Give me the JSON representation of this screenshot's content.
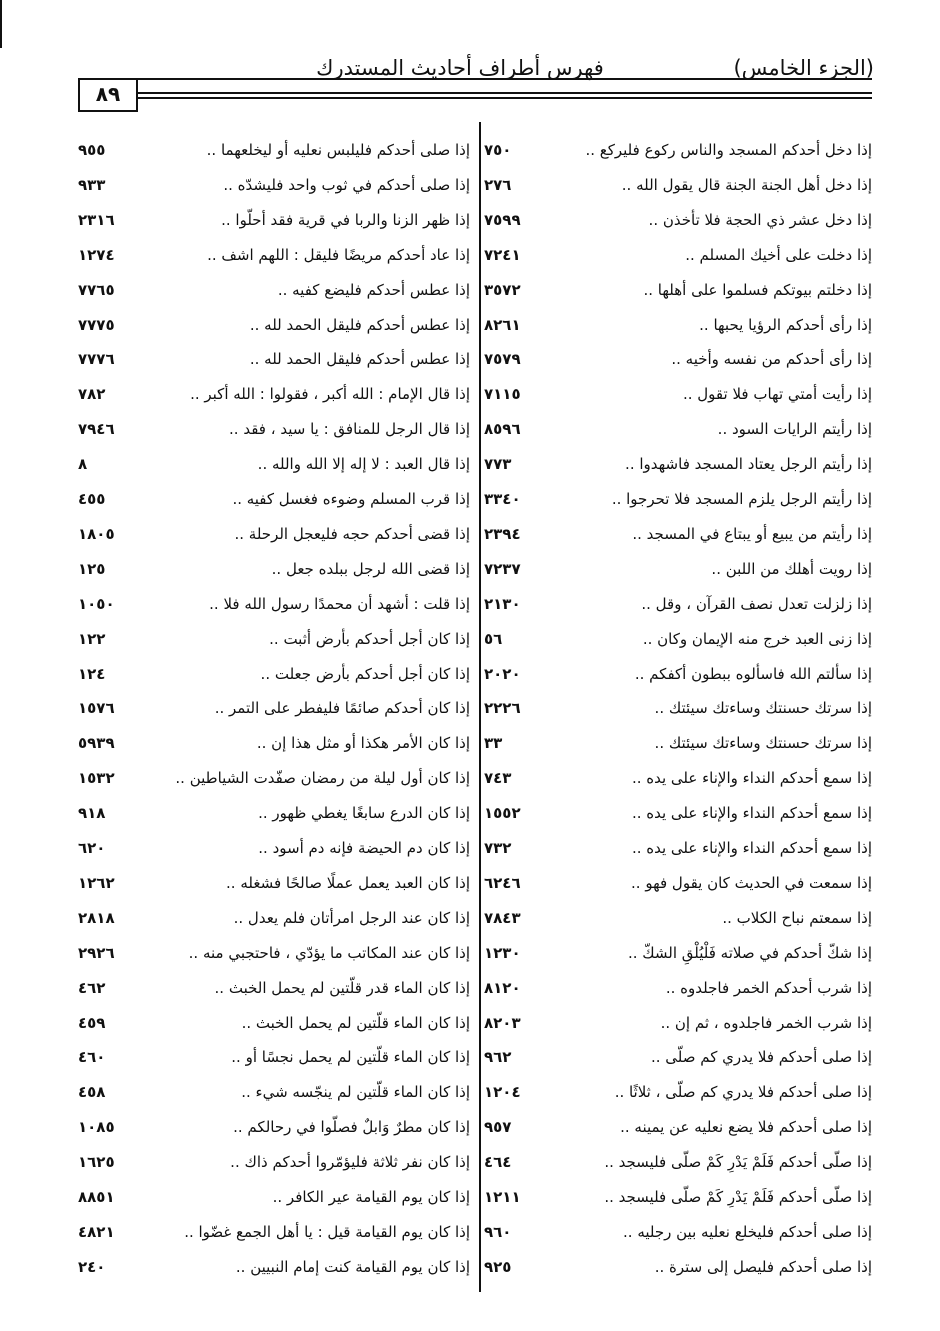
{
  "header": {
    "volume": "(الجزء الخامس)",
    "title": "فهرس أطراف أحاديث المستدرك",
    "page": "٨٩"
  },
  "columns": [
    {
      "rows": [
        {
          "text": "إذا دخل أحدكم المسجد والناس ركوع فليركع ..",
          "ref": "٧٥٠"
        },
        {
          "text": "إذا دخل أهل الجنة الجنة قال يقول الله ..",
          "ref": "٢٧٦"
        },
        {
          "text": "إذا دخل عشر ذي الحجة فلا تأخذن ..",
          "ref": "٧٥٩٩"
        },
        {
          "text": "إذا دخلت على أخيك المسلم ..",
          "ref": "٧٢٤١"
        },
        {
          "text": "إذا دخلتم بيوتكم فسلموا على أهلها ..",
          "ref": "٣٥٧٢"
        },
        {
          "text": "إذا رأى أحدكم الرؤيا يحبها ..",
          "ref": "٨٢٦١"
        },
        {
          "text": "إذا رأى أحدكم من نفسه وأخيه ..",
          "ref": "٧٥٧٩"
        },
        {
          "text": "إذا رأيت أمتي تهاب فلا تقول ..",
          "ref": "٧١١٥"
        },
        {
          "text": "إذا رأيتم الرايات السود ..",
          "ref": "٨٥٩٦"
        },
        {
          "text": "إذا رأيتم الرجل يعتاد المسجد فاشهدوا ..",
          "ref": "٧٧٣"
        },
        {
          "text": "إذا رأيتم الرجل يلزم المسجد فلا تحرجوا ..",
          "ref": "٣٣٤٠"
        },
        {
          "text": "إذا رأيتم من يبيع أو يبتاع في المسجد ..",
          "ref": "٢٣٩٤"
        },
        {
          "text": "إذا رويت أهلك من اللبن ..",
          "ref": "٧٢٣٧"
        },
        {
          "text": "إذا زلزلت تعدل نصف القرآن ، وقل ..",
          "ref": "٢١٣٠"
        },
        {
          "text": "إذا زنى العبد خرج منه الإيمان وكان ..",
          "ref": "٥٦"
        },
        {
          "text": "إذا سألتم الله فاسألوه ببطون أكفكم ..",
          "ref": "٢٠٢٠"
        },
        {
          "text": "إذا سرتك حسنتك وساءتك سيئتك ..",
          "ref": "٢٢٢٦"
        },
        {
          "text": "إذا سرتك حسنتك وساءتك سيئتك ..",
          "ref": "٣٣"
        },
        {
          "text": "إذا سمع أحدكم النداء والإناء على يده ..",
          "ref": "٧٤٣"
        },
        {
          "text": "إذا سمع أحدكم النداء والإناء على يده ..",
          "ref": "١٥٥٢"
        },
        {
          "text": "إذا سمع أحدكم النداء والإناء على يده ..",
          "ref": "٧٣٢"
        },
        {
          "text": "إذا سمعت في الحديث كان يقول فهو ..",
          "ref": "٦٢٤٦"
        },
        {
          "text": "إذا سمعتم نباح الكلاب ..",
          "ref": "٧٨٤٣"
        },
        {
          "text": "إذا شكّ أحدكم في صلاته فَلْيُلْقِ الشكّ ..",
          "ref": "١٢٣٠"
        },
        {
          "text": "إذا شرب أحدكم الخمر فاجلدوه ..",
          "ref": "٨١٢٠"
        },
        {
          "text": "إذا شرب الخمر فاجلدوه ، ثم إن ..",
          "ref": "٨٢٠٣"
        },
        {
          "text": "إذا صلى أحدكم فلا يدري كم صلّى ..",
          "ref": "٩٦٢"
        },
        {
          "text": "إذا صلى أحدكم فلا يدري كم صلّى ، ثلاثًا ..",
          "ref": "١٢٠٤"
        },
        {
          "text": "إذا صلى أحدكم فلا يضع نعليه عن يمينه ..",
          "ref": "٩٥٧"
        },
        {
          "text": "إذا صلّى أحدكم فَلَمْ يَدْرِ كَمْ صلّى فليسجد ..",
          "ref": "٤٦٤"
        },
        {
          "text": "إذا صلّى أحدكم فَلَمْ يَدْرِ كَمْ صلّى فليسجد ..",
          "ref": "١٢١١"
        },
        {
          "text": "إذا صلى أحدكم فليخلع نعليه بين رجليه ..",
          "ref": "٩٦٠"
        },
        {
          "text": "إذا صلى أحدكم فليصل إلى سترة ..",
          "ref": "٩٢٥"
        }
      ]
    },
    {
      "rows": [
        {
          "text": "إذا صلى أحدكم فليلبس نعليه أو ليخلعهما ..",
          "ref": "٩٥٥"
        },
        {
          "text": "إذا صلى أحدكم في ثوب واحد فليشدّه ..",
          "ref": "٩٣٣"
        },
        {
          "text": "إذا ظهر الزنا والربا في قرية فقد أحلّوا ..",
          "ref": "٢٣١٦"
        },
        {
          "text": "إذا عاد أحدكم مريضًا فليقل : اللهم اشف ..",
          "ref": "١٢٧٤"
        },
        {
          "text": "إذا عطس أحدكم فليضع كفيه ..",
          "ref": "٧٧٦٥"
        },
        {
          "text": "إذا عطس أحدكم فليقل الحمد لله ..",
          "ref": "٧٧٧٥"
        },
        {
          "text": "إذا عطس أحدكم فليقل الحمد لله ..",
          "ref": "٧٧٧٦"
        },
        {
          "text": "إذا قال الإمام : الله أكبر ، فقولوا : الله أكبر ..",
          "ref": "٧٨٢"
        },
        {
          "text": "إذا قال الرجل للمنافق : يا سيد ، فقد ..",
          "ref": "٧٩٤٦"
        },
        {
          "text": "إذا قال العبد : لا إله إلا الله والله ..",
          "ref": "٨"
        },
        {
          "text": "إذا قرب المسلم وضوءه فغسل كفيه ..",
          "ref": "٤٥٥"
        },
        {
          "text": "إذا قضى أحدكم حجه فليعجل الرحلة ..",
          "ref": "١٨٠٥"
        },
        {
          "text": "إذا قضى الله لرجل ببلده جعل ..",
          "ref": "١٢٥"
        },
        {
          "text": "إذا قلت : أشهد أن محمدًا رسول الله فلا ..",
          "ref": "١٠٥٠"
        },
        {
          "text": "إذا كان أجل أحدكم بأرض أثبت ..",
          "ref": "١٢٢"
        },
        {
          "text": "إذا كان أجل أحدكم بأرض جعلت ..",
          "ref": "١٢٤"
        },
        {
          "text": "إذا كان أحدكم صائمًا فليفطر على التمر ..",
          "ref": "١٥٧٦"
        },
        {
          "text": "إذا كان الأمر هكذا أو مثل هذا إن ..",
          "ref": "٥٩٣٩"
        },
        {
          "text": "إذا كان أول ليلة من رمضان صفّدت الشياطين ..",
          "ref": "١٥٣٢"
        },
        {
          "text": "إذا كان الدرع سابغًا يغطي ظهور ..",
          "ref": "٩١٨"
        },
        {
          "text": "إذا كان دم الحيضة فإنه دم أسود ..",
          "ref": "٦٢٠"
        },
        {
          "text": "إذا كان العبد يعمل عملًا صالحًا فشغله ..",
          "ref": "١٢٦٢"
        },
        {
          "text": "إذا كان عند الرجل امرأتان فلم يعدل ..",
          "ref": "٢٨١٨"
        },
        {
          "text": "إذا كان عند المكاتب ما يؤدّي ، فاحتجبي منه ..",
          "ref": "٢٩٢٦"
        },
        {
          "text": "إذا كان الماء قدر قلّتين لم يحمل الخبث ..",
          "ref": "٤٦٢"
        },
        {
          "text": "إذا كان الماء قلّتين لم يحمل الخبث ..",
          "ref": "٤٥٩"
        },
        {
          "text": "إذا كان الماء قلّتين لم يحمل نجسًا أو ..",
          "ref": "٤٦٠"
        },
        {
          "text": "إذا كان الماء قلّتين لم ينجّسه شيء ..",
          "ref": "٤٥٨"
        },
        {
          "text": "إذا كان مطرٌ وَابلٌ فصلّوا في رحالكم ..",
          "ref": "١٠٨٥"
        },
        {
          "text": "إذا كان نفر ثلاثة فليؤمّروا أحدكم ذاك ..",
          "ref": "١٦٢٥"
        },
        {
          "text": "إذا كان يوم القيامة عير الكافر ..",
          "ref": "٨٨٥١"
        },
        {
          "text": "إذا كان يوم القيامة قيل : يا أهل الجمع غضّوا ..",
          "ref": "٤٨٢١"
        },
        {
          "text": "إذا كان يوم القيامة كنت إمام النبيين ..",
          "ref": "٢٤٠"
        }
      ]
    }
  ]
}
